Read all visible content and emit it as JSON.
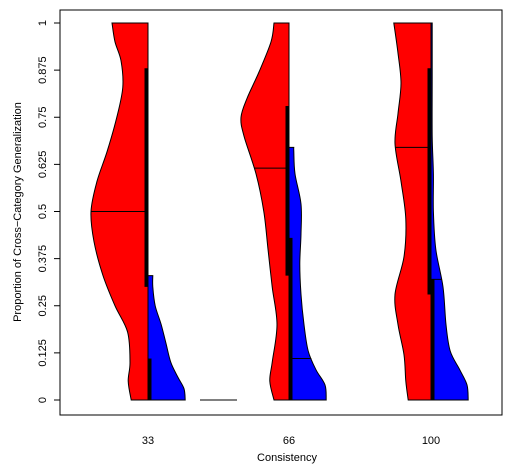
{
  "chart_data": {
    "type": "violin",
    "title": "",
    "xlabel": "Consistency",
    "ylabel": "Proportion of Cross−Category Generalization",
    "ylim": [
      0,
      1
    ],
    "yticks": [
      "0",
      "0.125",
      "0.25",
      "0.375",
      "0.5",
      "0.625",
      "0.75",
      "0.875",
      "1"
    ],
    "grid": false,
    "categories": [
      "33",
      "66",
      "100"
    ],
    "colors": {
      "left": "#ff0000",
      "right": "#0000ff"
    },
    "series": [
      {
        "side": "left",
        "color": "#ff0000",
        "groups": [
          {
            "category": "33",
            "median": 0.5,
            "q1": 0.3,
            "q3": 0.88,
            "density": [
              [
                0,
                0.28
              ],
              [
                0.05,
                0.33
              ],
              [
                0.1,
                0.3
              ],
              [
                0.18,
                0.34
              ],
              [
                0.25,
                0.55
              ],
              [
                0.33,
                0.75
              ],
              [
                0.42,
                0.9
              ],
              [
                0.5,
                0.95
              ],
              [
                0.58,
                0.85
              ],
              [
                0.66,
                0.68
              ],
              [
                0.75,
                0.52
              ],
              [
                0.83,
                0.42
              ],
              [
                0.9,
                0.45
              ],
              [
                0.95,
                0.55
              ],
              [
                1,
                0.6
              ]
            ]
          },
          {
            "category": "66",
            "median": 0.615,
            "q1": 0.33,
            "q3": 0.78,
            "density": [
              [
                0,
                0.25
              ],
              [
                0.05,
                0.32
              ],
              [
                0.1,
                0.28
              ],
              [
                0.2,
                0.2
              ],
              [
                0.3,
                0.28
              ],
              [
                0.4,
                0.35
              ],
              [
                0.5,
                0.42
              ],
              [
                0.6,
                0.55
              ],
              [
                0.7,
                0.75
              ],
              [
                0.75,
                0.8
              ],
              [
                0.8,
                0.7
              ],
              [
                0.87,
                0.5
              ],
              [
                0.95,
                0.3
              ],
              [
                1,
                0.25
              ]
            ]
          },
          {
            "category": "100",
            "median": 0.67,
            "q1": 0.28,
            "q3": 0.88,
            "density": [
              [
                0,
                0.38
              ],
              [
                0.05,
                0.42
              ],
              [
                0.12,
                0.45
              ],
              [
                0.2,
                0.55
              ],
              [
                0.28,
                0.6
              ],
              [
                0.38,
                0.45
              ],
              [
                0.48,
                0.42
              ],
              [
                0.58,
                0.5
              ],
              [
                0.68,
                0.6
              ],
              [
                0.76,
                0.55
              ],
              [
                0.84,
                0.5
              ],
              [
                0.92,
                0.55
              ],
              [
                1,
                0.62
              ]
            ]
          }
        ]
      },
      {
        "side": "right",
        "color": "#0000ff",
        "groups": [
          {
            "category": "33",
            "median": 0,
            "q1": 0,
            "q3": 0.11,
            "density": [
              [
                0,
                0.62
              ],
              [
                0.03,
                0.6
              ],
              [
                0.06,
                0.5
              ],
              [
                0.1,
                0.38
              ],
              [
                0.15,
                0.3
              ],
              [
                0.2,
                0.22
              ],
              [
                0.25,
                0.12
              ],
              [
                0.3,
                0.08
              ],
              [
                0.33,
                0.08
              ]
            ]
          },
          {
            "category": "66",
            "median": 0.11,
            "q1": 0.0,
            "q3": 0.43,
            "density": [
              [
                0,
                0.62
              ],
              [
                0.04,
                0.6
              ],
              [
                0.08,
                0.45
              ],
              [
                0.13,
                0.32
              ],
              [
                0.2,
                0.25
              ],
              [
                0.28,
                0.2
              ],
              [
                0.36,
                0.18
              ],
              [
                0.44,
                0.2
              ],
              [
                0.52,
                0.2
              ],
              [
                0.6,
                0.1
              ],
              [
                0.66,
                0.08
              ],
              [
                0.67,
                0.08
              ]
            ]
          },
          {
            "category": "100",
            "median": 0.32,
            "q1": 0.0,
            "q3": 0.32,
            "density": [
              [
                0,
                0.62
              ],
              [
                0.04,
                0.6
              ],
              [
                0.08,
                0.48
              ],
              [
                0.13,
                0.32
              ],
              [
                0.2,
                0.25
              ],
              [
                0.3,
                0.2
              ],
              [
                0.4,
                0.08
              ],
              [
                0.5,
                0.04
              ],
              [
                0.6,
                0.04
              ],
              [
                0.7,
                0.02
              ],
              [
                0.85,
                0.02
              ],
              [
                1,
                0.02
              ]
            ]
          }
        ]
      }
    ]
  }
}
